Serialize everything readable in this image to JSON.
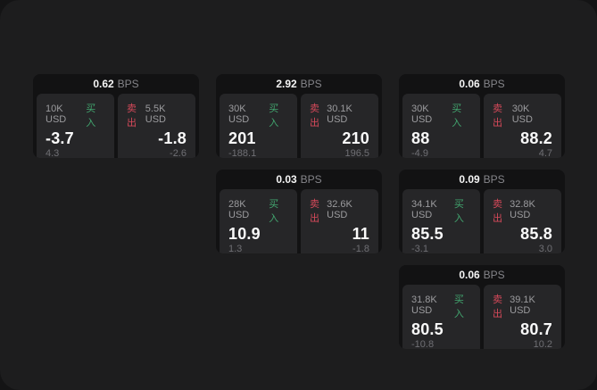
{
  "labels": {
    "bps": "BPS",
    "buy": "买入",
    "sell": "卖出"
  },
  "colors": {
    "buy_green": "#42a56f",
    "sell_red": "#d6495a",
    "screen_bg": "#1d1d1e",
    "card_bg": "#121213",
    "panel_bg": "#262628"
  },
  "cards": [
    {
      "bps": "0.62",
      "buy": {
        "notional": "10K USD",
        "price": "-3.7",
        "delta": "4.3"
      },
      "sell": {
        "notional": "5.5K USD",
        "price": "-1.8",
        "delta": "-2.6"
      }
    },
    {
      "bps": "2.92",
      "buy": {
        "notional": "30K USD",
        "price": "201",
        "delta": "-188.1"
      },
      "sell": {
        "notional": "30.1K USD",
        "price": "210",
        "delta": "196.5"
      }
    },
    {
      "bps": "0.06",
      "buy": {
        "notional": "30K USD",
        "price": "88",
        "delta": "-4.9"
      },
      "sell": {
        "notional": "30K USD",
        "price": "88.2",
        "delta": "4.7"
      }
    },
    {
      "bps": "0.03",
      "buy": {
        "notional": "28K USD",
        "price": "10.9",
        "delta": "1.3"
      },
      "sell": {
        "notional": "32.6K USD",
        "price": "11",
        "delta": "-1.8"
      }
    },
    {
      "bps": "0.09",
      "buy": {
        "notional": "34.1K USD",
        "price": "85.5",
        "delta": "-3.1"
      },
      "sell": {
        "notional": "32.8K USD",
        "price": "85.8",
        "delta": "3.0"
      }
    },
    {
      "bps": "0.06",
      "buy": {
        "notional": "31.8K USD",
        "price": "80.5",
        "delta": "-10.8"
      },
      "sell": {
        "notional": "39.1K USD",
        "price": "80.7",
        "delta": "10.2"
      }
    }
  ]
}
